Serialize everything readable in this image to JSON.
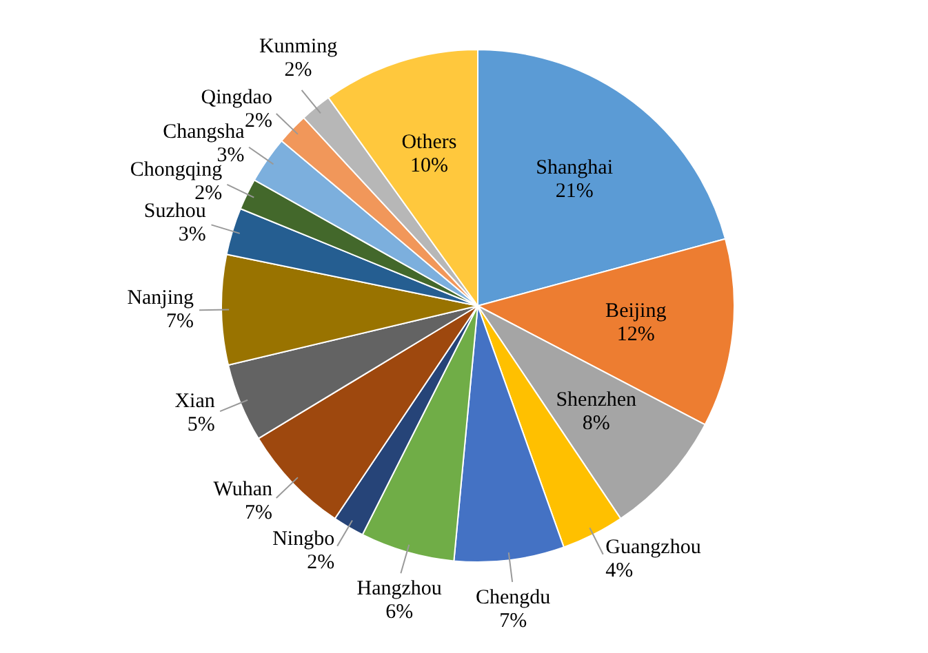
{
  "chart_data": {
    "type": "pie",
    "categories": [
      "Shanghai",
      "Beijing",
      "Shenzhen",
      "Guangzhou",
      "Chengdu",
      "Hangzhou",
      "Ningbo",
      "Wuhan",
      "Xian",
      "Nanjing",
      "Suzhou",
      "Chongqing",
      "Changsha",
      "Qingdao",
      "Kunming",
      "Others"
    ],
    "values": [
      21,
      12,
      8,
      4,
      7,
      6,
      2,
      7,
      5,
      7,
      3,
      2,
      3,
      2,
      2,
      10
    ],
    "colors": [
      "#5b9bd5",
      "#ed7d31",
      "#a5a5a5",
      "#ffc000",
      "#4472c4",
      "#70ad47",
      "#264478",
      "#9e480e",
      "#636363",
      "#997300",
      "#255e91",
      "#43682b",
      "#7cafdd",
      "#f1975a",
      "#b7b7b7",
      "#ffc83d"
    ],
    "value_labels": [
      "21%",
      "12%",
      "8%",
      "4%",
      "7%",
      "6%",
      "2%",
      "7%",
      "5%",
      "7%",
      "3%",
      "2%",
      "3%",
      "2%",
      "2%",
      "10%"
    ],
    "legend": false
  }
}
